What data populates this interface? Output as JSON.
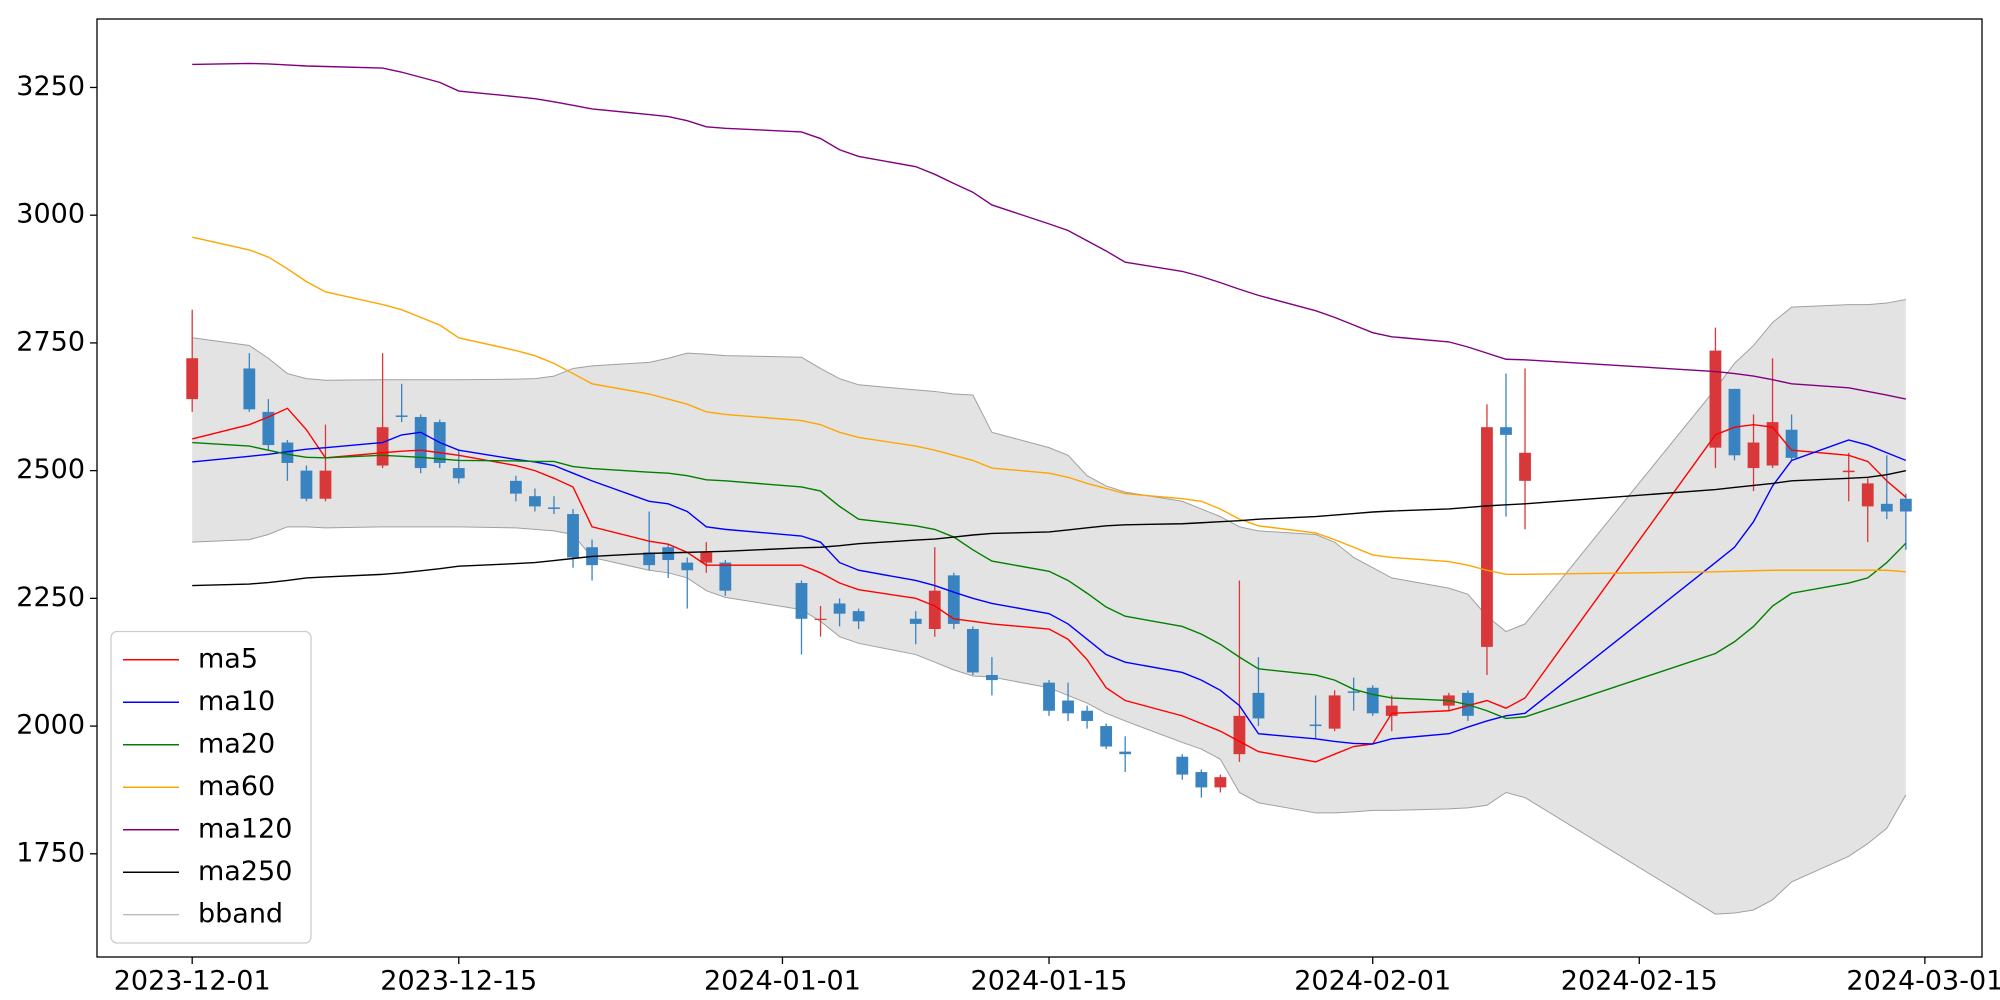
{
  "chart_data": {
    "type": "candlestick",
    "x": [
      "2023-12-01",
      "2023-12-04",
      "2023-12-05",
      "2023-12-06",
      "2023-12-07",
      "2023-12-08",
      "2023-12-11",
      "2023-12-12",
      "2023-12-13",
      "2023-12-14",
      "2023-12-15",
      "2023-12-18",
      "2023-12-19",
      "2023-12-20",
      "2023-12-21",
      "2023-12-22",
      "2023-12-25",
      "2023-12-26",
      "2023-12-27",
      "2023-12-28",
      "2023-12-29",
      "2024-01-02",
      "2024-01-03",
      "2024-01-04",
      "2024-01-05",
      "2024-01-08",
      "2024-01-09",
      "2024-01-10",
      "2024-01-11",
      "2024-01-12",
      "2024-01-15",
      "2024-01-16",
      "2024-01-17",
      "2024-01-18",
      "2024-01-19",
      "2024-01-22",
      "2024-01-23",
      "2024-01-24",
      "2024-01-25",
      "2024-01-26",
      "2024-01-29",
      "2024-01-30",
      "2024-01-31",
      "2024-02-01",
      "2024-02-02",
      "2024-02-05",
      "2024-02-06",
      "2024-02-07",
      "2024-02-08",
      "2024-02-09",
      "2024-02-19",
      "2024-02-20",
      "2024-02-21",
      "2024-02-22",
      "2024-02-23",
      "2024-02-26",
      "2024-02-27",
      "2024-02-28",
      "2024-02-29"
    ],
    "xlim": [
      "2023-11-26",
      "2024-03-04"
    ],
    "xticks": [
      "2023-12-01",
      "2023-12-15",
      "2024-01-01",
      "2024-01-15",
      "2024-02-01",
      "2024-02-15",
      "2024-03-01"
    ],
    "ylim": [
      1548,
      3384
    ],
    "yticks": [
      1750,
      2000,
      2250,
      2500,
      2750,
      3000,
      3250
    ],
    "candles": {
      "up_color": "#d9383a",
      "down_color": "#3a83c1",
      "open": [
        2640,
        2700,
        2615,
        2555,
        2500,
        2445,
        2510,
        2608,
        2605,
        2595,
        2505,
        2480,
        2450,
        2428,
        2415,
        2350,
        2340,
        2350,
        2320,
        2320,
        2320,
        2280,
        2208,
        2240,
        2225,
        2210,
        2190,
        2295,
        2190,
        2100,
        2085,
        2050,
        2030,
        2000,
        1950,
        1940,
        1910,
        1880,
        1945,
        2065,
        2003,
        1995,
        2068,
        2075,
        2020,
        2040,
        2065,
        2155,
        2585,
        2480,
        2545,
        2660,
        2505,
        2510,
        2580,
        2497,
        2430,
        2435,
        2445
      ],
      "high": [
        2815,
        2730,
        2640,
        2560,
        2510,
        2590,
        2730,
        2670,
        2610,
        2600,
        2540,
        2490,
        2465,
        2450,
        2425,
        2365,
        2420,
        2355,
        2330,
        2360,
        2325,
        2285,
        2235,
        2250,
        2230,
        2225,
        2350,
        2300,
        2195,
        2135,
        2090,
        2085,
        2040,
        2005,
        1980,
        1945,
        1915,
        1905,
        2285,
        2135,
        2060,
        2070,
        2095,
        2080,
        2060,
        2065,
        2070,
        2630,
        2690,
        2700,
        2780,
        2660,
        2610,
        2720,
        2610,
        2535,
        2485,
        2530,
        2455
      ],
      "low": [
        2615,
        2615,
        2540,
        2480,
        2440,
        2440,
        2505,
        2595,
        2495,
        2505,
        2475,
        2440,
        2420,
        2415,
        2310,
        2285,
        2305,
        2290,
        2230,
        2300,
        2255,
        2140,
        2175,
        2195,
        2190,
        2160,
        2175,
        2190,
        2100,
        2060,
        2020,
        2010,
        1995,
        1955,
        1910,
        1895,
        1860,
        1870,
        1930,
        2000,
        1975,
        1990,
        2030,
        2020,
        1990,
        2030,
        2010,
        2100,
        2410,
        2385,
        2505,
        2520,
        2460,
        2505,
        2520,
        2440,
        2360,
        2405,
        2345
      ],
      "close": [
        2720,
        2620,
        2550,
        2515,
        2445,
        2500,
        2585,
        2605,
        2505,
        2515,
        2485,
        2455,
        2430,
        2425,
        2330,
        2315,
        2315,
        2325,
        2305,
        2340,
        2265,
        2210,
        2210,
        2220,
        2205,
        2200,
        2265,
        2200,
        2105,
        2090,
        2030,
        2025,
        2010,
        1960,
        1945,
        1905,
        1880,
        1900,
        2020,
        2015,
        2000,
        2060,
        2065,
        2025,
        2040,
        2060,
        2020,
        2585,
        2570,
        2535,
        2735,
        2530,
        2555,
        2595,
        2525,
        2500,
        2475,
        2420,
        2420
      ]
    },
    "series": [
      {
        "name": "ma5",
        "color": "#ff0000",
        "values": [
          2562,
          2590,
          2605,
          2622,
          2580,
          2525,
          2535,
          2538,
          2540,
          2535,
          2530,
          2510,
          2500,
          2485,
          2468,
          2390,
          2362,
          2356,
          2340,
          2315,
          2315,
          2315,
          2300,
          2280,
          2267,
          2250,
          2235,
          2210,
          2205,
          2200,
          2190,
          2170,
          2130,
          2075,
          2050,
          2020,
          2005,
          1990,
          1970,
          1950,
          1930,
          1945,
          1960,
          1965,
          2025,
          2030,
          2040,
          2050,
          2035,
          2055,
          2570,
          2585,
          2590,
          2585,
          2540,
          2530,
          2518,
          2480,
          2448
        ]
      },
      {
        "name": "ma10",
        "color": "#0000ff",
        "values": [
          2517,
          2528,
          2532,
          2537,
          2542,
          2545,
          2555,
          2570,
          2575,
          2555,
          2540,
          2522,
          2517,
          2510,
          2495,
          2480,
          2440,
          2435,
          2420,
          2390,
          2385,
          2372,
          2360,
          2320,
          2305,
          2285,
          2275,
          2262,
          2250,
          2240,
          2220,
          2200,
          2170,
          2140,
          2125,
          2105,
          2090,
          2070,
          2040,
          1985,
          1975,
          1970,
          1966,
          1965,
          1975,
          1985,
          1998,
          2010,
          2020,
          2025,
          2320,
          2350,
          2400,
          2470,
          2520,
          2560,
          2550,
          2535,
          2520
        ]
      },
      {
        "name": "ma20",
        "color": "#008000",
        "values": [
          2555,
          2548,
          2540,
          2532,
          2526,
          2525,
          2530,
          2528,
          2526,
          2523,
          2520,
          2519,
          2518,
          2518,
          2508,
          2504,
          2497,
          2495,
          2490,
          2482,
          2480,
          2468,
          2460,
          2430,
          2405,
          2392,
          2385,
          2370,
          2345,
          2323,
          2303,
          2285,
          2260,
          2233,
          2215,
          2195,
          2180,
          2160,
          2135,
          2112,
          2100,
          2090,
          2072,
          2062,
          2055,
          2050,
          2042,
          2030,
          2015,
          2018,
          2142,
          2165,
          2195,
          2235,
          2260,
          2280,
          2290,
          2320,
          2358
        ]
      },
      {
        "name": "ma60",
        "color": "#ffa500",
        "values": [
          2957,
          2932,
          2918,
          2895,
          2870,
          2850,
          2825,
          2815,
          2800,
          2785,
          2760,
          2735,
          2725,
          2710,
          2690,
          2670,
          2650,
          2640,
          2630,
          2615,
          2610,
          2598,
          2590,
          2575,
          2565,
          2548,
          2540,
          2530,
          2520,
          2505,
          2495,
          2487,
          2475,
          2465,
          2455,
          2445,
          2440,
          2425,
          2405,
          2392,
          2378,
          2365,
          2350,
          2335,
          2330,
          2322,
          2315,
          2305,
          2297,
          2297,
          2302,
          2303,
          2304,
          2305,
          2305,
          2305,
          2305,
          2305,
          2302
        ]
      },
      {
        "name": "ma120",
        "color": "#800080",
        "values": [
          3295,
          3297,
          3296,
          3294,
          3292,
          3291,
          3288,
          3280,
          3270,
          3260,
          3243,
          3232,
          3228,
          3222,
          3215,
          3208,
          3197,
          3193,
          3185,
          3173,
          3170,
          3163,
          3150,
          3128,
          3115,
          3095,
          3080,
          3062,
          3045,
          3020,
          2983,
          2970,
          2950,
          2930,
          2908,
          2890,
          2880,
          2868,
          2855,
          2843,
          2813,
          2800,
          2785,
          2770,
          2762,
          2752,
          2742,
          2730,
          2718,
          2717,
          2694,
          2690,
          2685,
          2678,
          2670,
          2662,
          2655,
          2648,
          2640
        ]
      },
      {
        "name": "ma250",
        "color": "#000000",
        "values": [
          2275,
          2278,
          2281,
          2285,
          2290,
          2292,
          2297,
          2300,
          2304,
          2308,
          2313,
          2318,
          2320,
          2324,
          2328,
          2332,
          2338,
          2339,
          2340,
          2341,
          2342,
          2349,
          2350,
          2353,
          2357,
          2364,
          2366,
          2370,
          2374,
          2377,
          2380,
          2384,
          2388,
          2392,
          2394,
          2396,
          2398,
          2400,
          2402,
          2405,
          2410,
          2413,
          2416,
          2419,
          2421,
          2425,
          2428,
          2431,
          2433,
          2435,
          2463,
          2467,
          2471,
          2475,
          2480,
          2485,
          2487,
          2492,
          2500
        ]
      }
    ],
    "bband": {
      "name": "bband",
      "color": "#a0a0a0",
      "fill": "#e3e3e3",
      "upper": [
        2760,
        2745,
        2720,
        2690,
        2680,
        2677,
        2678,
        2678,
        2678,
        2678,
        2678,
        2679,
        2680,
        2685,
        2700,
        2705,
        2712,
        2720,
        2730,
        2728,
        2725,
        2722,
        2700,
        2680,
        2668,
        2658,
        2655,
        2650,
        2648,
        2575,
        2545,
        2530,
        2490,
        2470,
        2458,
        2440,
        2425,
        2410,
        2390,
        2382,
        2375,
        2360,
        2330,
        2310,
        2290,
        2270,
        2258,
        2215,
        2185,
        2200,
        2660,
        2710,
        2745,
        2790,
        2820,
        2825,
        2825,
        2828,
        2835
      ],
      "lower": [
        2360,
        2365,
        2375,
        2390,
        2390,
        2388,
        2390,
        2390,
        2390,
        2390,
        2390,
        2388,
        2385,
        2382,
        2375,
        2330,
        2305,
        2300,
        2290,
        2265,
        2252,
        2228,
        2205,
        2175,
        2162,
        2140,
        2125,
        2110,
        2098,
        2096,
        2075,
        2060,
        2045,
        2025,
        2010,
        1968,
        1955,
        1935,
        1870,
        1850,
        1830,
        1830,
        1832,
        1835,
        1835,
        1838,
        1840,
        1845,
        1870,
        1860,
        1632,
        1634,
        1640,
        1660,
        1695,
        1745,
        1770,
        1800,
        1865
      ]
    },
    "legend": "lower left"
  }
}
